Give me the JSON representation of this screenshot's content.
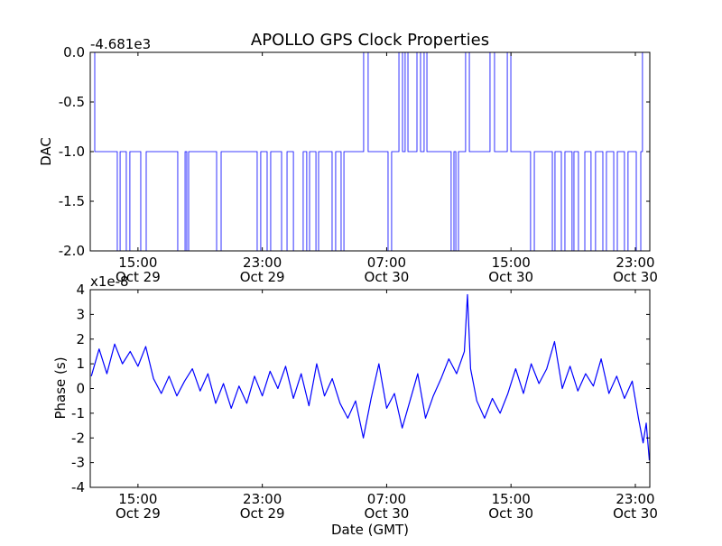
{
  "chart_data": [
    {
      "type": "line",
      "title": "APOLLO GPS Clock Properties",
      "ylabel": "DAC",
      "xlabel": "",
      "offset_label": "-4.681e3",
      "x_units": "hours since Oct 29 00:00 GMT",
      "xlim": [
        11.93,
        47.93
      ],
      "ylim": [
        -2.0,
        0.0
      ],
      "yticks": [
        "0.0",
        "-0.5",
        "-1.0",
        "-1.5",
        "-2.0"
      ],
      "ytick_values": [
        0,
        -0.5,
        -1,
        -1.5,
        -2
      ],
      "xticks": [
        {
          "value": 15,
          "time": "15:00",
          "date": "Oct 29"
        },
        {
          "value": 23,
          "time": "23:00",
          "date": "Oct 29"
        },
        {
          "value": 31,
          "time": "07:00",
          "date": "Oct 30"
        },
        {
          "value": 39,
          "time": "15:00",
          "date": "Oct 30"
        },
        {
          "value": 47,
          "time": "23:00",
          "date": "Oct 30"
        }
      ],
      "color": "#0000ff",
      "steps": [
        [
          11.93,
          0
        ],
        [
          12.22,
          -1
        ],
        [
          13.67,
          -2
        ],
        [
          13.85,
          -1
        ],
        [
          14.25,
          -2
        ],
        [
          14.48,
          -1
        ],
        [
          15.18,
          -2
        ],
        [
          15.53,
          -1
        ],
        [
          17.56,
          -2
        ],
        [
          18.03,
          -1
        ],
        [
          18.14,
          -2
        ],
        [
          18.26,
          -1
        ],
        [
          20.06,
          -2
        ],
        [
          20.35,
          -1
        ],
        [
          22.67,
          -2
        ],
        [
          22.9,
          -1
        ],
        [
          23.31,
          -2
        ],
        [
          23.54,
          -1
        ],
        [
          24.24,
          -2
        ],
        [
          24.59,
          -1
        ],
        [
          25.0,
          -2
        ],
        [
          25.63,
          -1
        ],
        [
          25.86,
          -2
        ],
        [
          26.04,
          -1
        ],
        [
          26.45,
          -2
        ],
        [
          26.62,
          -1
        ],
        [
          27.49,
          -2
        ],
        [
          27.72,
          -1
        ],
        [
          28.07,
          -2
        ],
        [
          28.25,
          -1
        ],
        [
          29.52,
          0
        ],
        [
          29.81,
          -1
        ],
        [
          31.09,
          -2
        ],
        [
          31.32,
          -1
        ],
        [
          31.79,
          0
        ],
        [
          32.02,
          -1
        ],
        [
          32.19,
          0
        ],
        [
          32.37,
          -1
        ],
        [
          32.95,
          0
        ],
        [
          33.18,
          -1
        ],
        [
          33.41,
          0
        ],
        [
          33.59,
          -1
        ],
        [
          35.15,
          -2
        ],
        [
          35.33,
          -1
        ],
        [
          35.45,
          -2
        ],
        [
          35.62,
          -1
        ],
        [
          36.08,
          0
        ],
        [
          36.32,
          -1
        ],
        [
          37.65,
          0
        ],
        [
          37.94,
          -1
        ],
        [
          38.76,
          0
        ],
        [
          38.99,
          -1
        ],
        [
          40.26,
          -2
        ],
        [
          40.5,
          -1
        ],
        [
          41.66,
          -2
        ],
        [
          41.83,
          -1
        ],
        [
          42.24,
          -2
        ],
        [
          42.47,
          -1
        ],
        [
          42.93,
          -2
        ],
        [
          43.05,
          -1
        ],
        [
          43.34,
          -2
        ],
        [
          43.75,
          -1
        ],
        [
          44.15,
          -2
        ],
        [
          44.44,
          -1
        ],
        [
          44.91,
          -2
        ],
        [
          45.14,
          -1
        ],
        [
          45.61,
          -2
        ],
        [
          45.84,
          -1
        ],
        [
          46.3,
          -2
        ],
        [
          46.53,
          -1
        ],
        [
          47.06,
          -2
        ],
        [
          47.35,
          -1
        ],
        [
          47.46,
          0
        ],
        [
          47.93,
          0
        ]
      ]
    },
    {
      "type": "line",
      "title": "",
      "ylabel": "Phase (s)",
      "xlabel": "Date (GMT)",
      "offset_label": "x1e-8",
      "x_units": "hours since Oct 29 00:00 GMT",
      "xlim": [
        11.93,
        47.93
      ],
      "ylim": [
        -4,
        4
      ],
      "yticks": [
        "4",
        "3",
        "2",
        "1",
        "0",
        "-1",
        "-2",
        "-3",
        "-4"
      ],
      "ytick_values": [
        4,
        3,
        2,
        1,
        0,
        -1,
        -2,
        -3,
        -4
      ],
      "xticks": [
        {
          "value": 15,
          "time": "15:00",
          "date": "Oct 29"
        },
        {
          "value": 23,
          "time": "23:00",
          "date": "Oct 29"
        },
        {
          "value": 31,
          "time": "07:00",
          "date": "Oct 30"
        },
        {
          "value": 39,
          "time": "15:00",
          "date": "Oct 30"
        },
        {
          "value": 47,
          "time": "23:00",
          "date": "Oct 30"
        }
      ],
      "color": "#0000ff",
      "points": [
        [
          12.0,
          0.5
        ],
        [
          12.5,
          1.6
        ],
        [
          13.0,
          0.6
        ],
        [
          13.5,
          1.8
        ],
        [
          14.0,
          1.0
        ],
        [
          14.5,
          1.5
        ],
        [
          15.0,
          0.9
        ],
        [
          15.5,
          1.7
        ],
        [
          16.0,
          0.4
        ],
        [
          16.5,
          -0.2
        ],
        [
          17.0,
          0.5
        ],
        [
          17.5,
          -0.3
        ],
        [
          18.0,
          0.3
        ],
        [
          18.5,
          0.8
        ],
        [
          19.0,
          -0.1
        ],
        [
          19.5,
          0.6
        ],
        [
          20.0,
          -0.6
        ],
        [
          20.5,
          0.2
        ],
        [
          21.0,
          -0.8
        ],
        [
          21.5,
          0.1
        ],
        [
          22.0,
          -0.6
        ],
        [
          22.5,
          0.5
        ],
        [
          23.0,
          -0.3
        ],
        [
          23.5,
          0.7
        ],
        [
          24.0,
          0.0
        ],
        [
          24.5,
          0.9
        ],
        [
          25.0,
          -0.4
        ],
        [
          25.5,
          0.6
        ],
        [
          26.0,
          -0.7
        ],
        [
          26.5,
          1.0
        ],
        [
          27.0,
          -0.3
        ],
        [
          27.5,
          0.4
        ],
        [
          28.0,
          -0.6
        ],
        [
          28.5,
          -1.2
        ],
        [
          29.0,
          -0.5
        ],
        [
          29.5,
          -2.0
        ],
        [
          30.0,
          -0.4
        ],
        [
          30.5,
          1.0
        ],
        [
          31.0,
          -0.8
        ],
        [
          31.5,
          -0.2
        ],
        [
          32.0,
          -1.6
        ],
        [
          32.5,
          -0.5
        ],
        [
          33.0,
          0.6
        ],
        [
          33.5,
          -1.2
        ],
        [
          34.0,
          -0.3
        ],
        [
          34.5,
          0.4
        ],
        [
          35.0,
          1.2
        ],
        [
          35.5,
          0.6
        ],
        [
          36.0,
          1.5
        ],
        [
          36.2,
          3.8
        ],
        [
          36.4,
          0.8
        ],
        [
          36.8,
          -0.5
        ],
        [
          37.3,
          -1.2
        ],
        [
          37.8,
          -0.4
        ],
        [
          38.3,
          -1.0
        ],
        [
          38.8,
          -0.2
        ],
        [
          39.3,
          0.8
        ],
        [
          39.8,
          -0.2
        ],
        [
          40.3,
          1.0
        ],
        [
          40.8,
          0.2
        ],
        [
          41.3,
          0.8
        ],
        [
          41.8,
          1.9
        ],
        [
          42.3,
          0.0
        ],
        [
          42.8,
          0.9
        ],
        [
          43.3,
          -0.1
        ],
        [
          43.8,
          0.6
        ],
        [
          44.3,
          0.1
        ],
        [
          44.8,
          1.2
        ],
        [
          45.3,
          -0.2
        ],
        [
          45.8,
          0.5
        ],
        [
          46.3,
          -0.4
        ],
        [
          46.8,
          0.3
        ],
        [
          47.2,
          -1.2
        ],
        [
          47.5,
          -2.2
        ],
        [
          47.7,
          -1.4
        ],
        [
          47.9,
          -2.9
        ]
      ]
    }
  ]
}
